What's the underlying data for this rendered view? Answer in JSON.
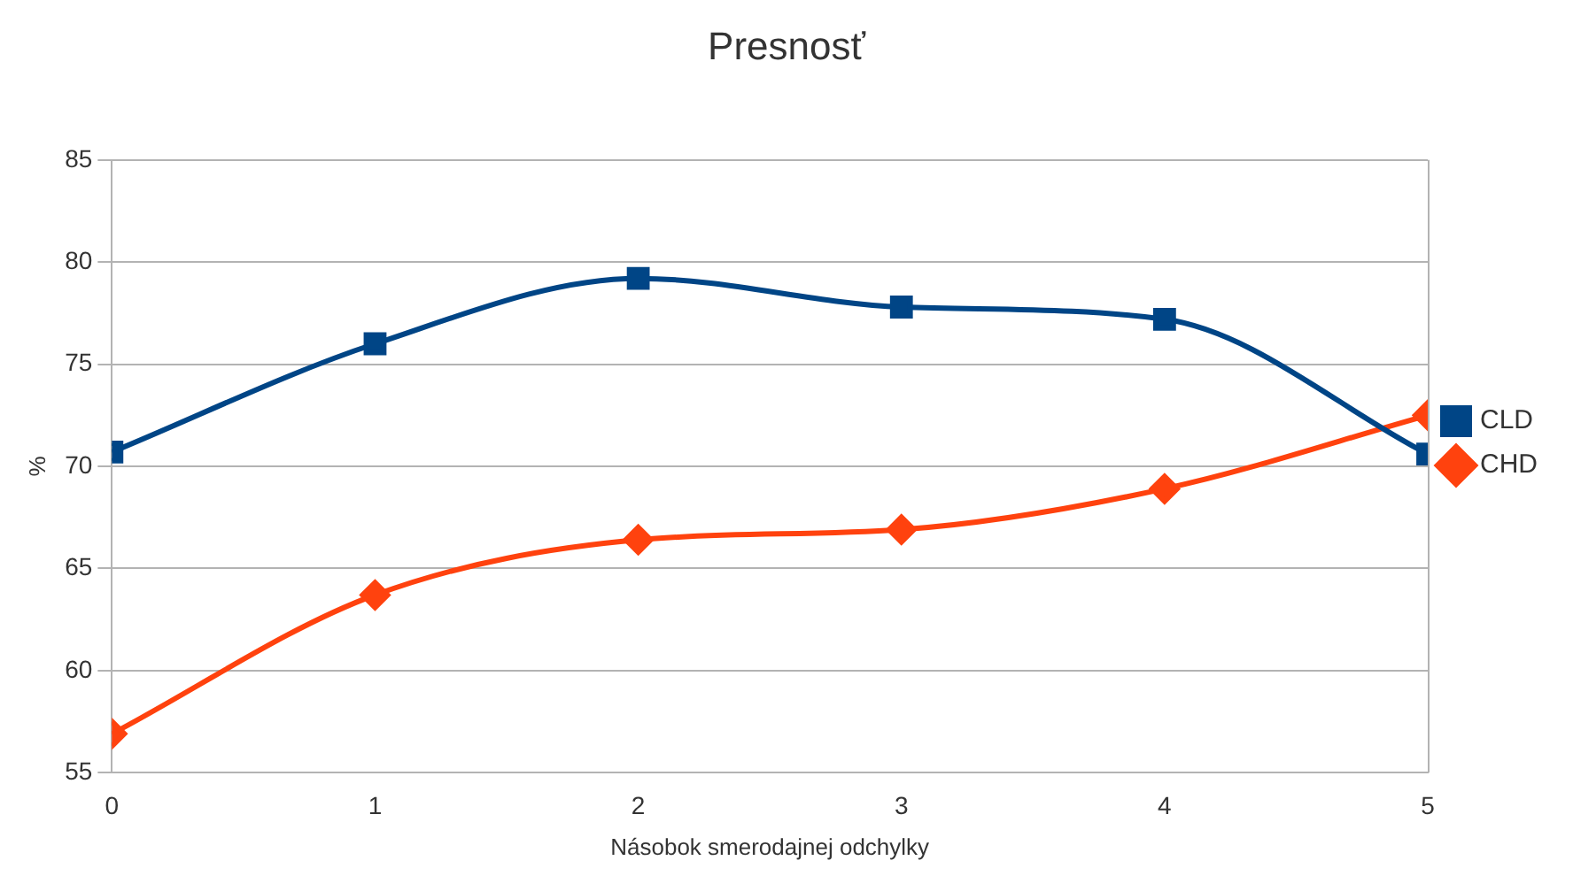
{
  "chart_data": {
    "type": "line",
    "title": "Presnosť",
    "xlabel": "Násobok smerodajnej odchylky",
    "ylabel": "%",
    "x": [
      0,
      1,
      2,
      3,
      4,
      5
    ],
    "xlim": [
      0,
      5
    ],
    "xticks": [
      0,
      1,
      2,
      3,
      4,
      5
    ],
    "ylim": [
      55,
      85
    ],
    "yticks": [
      55,
      60,
      65,
      70,
      75,
      80,
      85
    ],
    "grid": "y",
    "legend": "right",
    "series": [
      {
        "name": "CLD",
        "color": "#004586",
        "marker": "square",
        "values": [
          70.7,
          76,
          79.2,
          77.8,
          77.2,
          70.6
        ]
      },
      {
        "name": "CHD",
        "color": "#ff420e",
        "marker": "diamond",
        "values": [
          56.9,
          63.7,
          66.4,
          66.9,
          68.9,
          72.5
        ]
      }
    ]
  }
}
